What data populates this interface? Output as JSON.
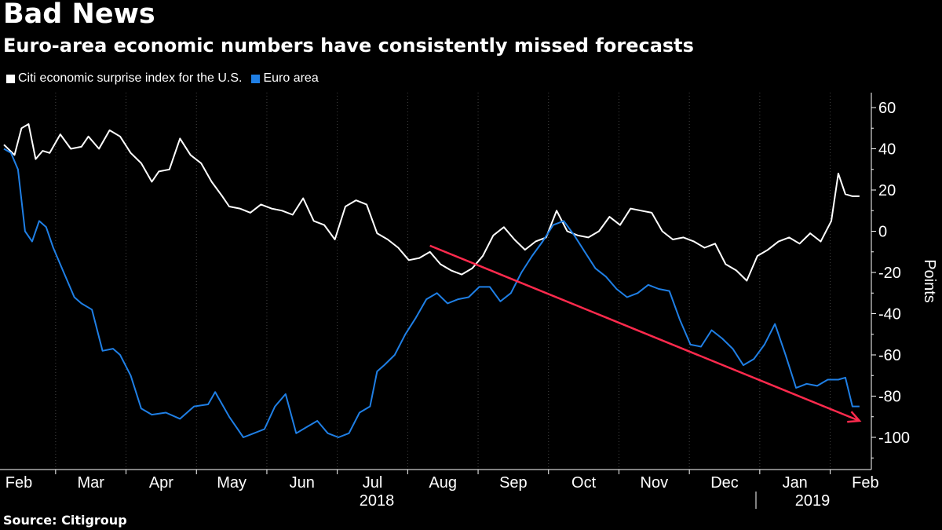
{
  "title": "Bad News",
  "subtitle": "Euro-area economic numbers have consistently missed forecasts",
  "source": "Source: Citigroup",
  "colors": {
    "background": "#000000",
    "us": "#ffffff",
    "euro": "#1f7fe5",
    "trend_arrow": "#ff2a4d",
    "grid": "#3a3a3a"
  },
  "chart_data": {
    "type": "line",
    "title": "Bad News",
    "subtitle": "Euro-area economic numbers have consistently missed forecasts",
    "ylabel": "Points",
    "ylim": [
      -115,
      65
    ],
    "yticks": [
      60,
      40,
      20,
      0,
      -20,
      -40,
      -60,
      -80,
      -100
    ],
    "yaxis_position": "right",
    "grid": "vertical dotted month separators",
    "legend_position": "top-left",
    "x_tick_labels": [
      "Feb",
      "Mar",
      "Apr",
      "May",
      "Jun",
      "Jul",
      "Aug",
      "Sep",
      "Oct",
      "Nov",
      "Dec",
      "Jan",
      "Feb"
    ],
    "year_labels": [
      "2018",
      "2019"
    ],
    "x_range": [
      0,
      12.15
    ],
    "series": [
      {
        "name": "Citi economic surprise index for the U.S.",
        "color": "#ffffff",
        "x": [
          0,
          0.15,
          0.25,
          0.35,
          0.45,
          0.55,
          0.65,
          0.8,
          0.95,
          1.1,
          1.2,
          1.35,
          1.5,
          1.65,
          1.8,
          1.95,
          2.1,
          2.2,
          2.35,
          2.5,
          2.65,
          2.8,
          2.95,
          3.1,
          3.2,
          3.35,
          3.5,
          3.65,
          3.8,
          3.95,
          4.1,
          4.25,
          4.4,
          4.55,
          4.7,
          4.85,
          5.0,
          5.15,
          5.3,
          5.45,
          5.6,
          5.75,
          5.9,
          6.05,
          6.2,
          6.35,
          6.5,
          6.65,
          6.8,
          6.95,
          7.1,
          7.25,
          7.4,
          7.55,
          7.7,
          7.85,
          8.0,
          8.15,
          8.3,
          8.45,
          8.6,
          8.75,
          8.9,
          9.05,
          9.2,
          9.35,
          9.5,
          9.65,
          9.8,
          9.95,
          10.1,
          10.25,
          10.4,
          10.55,
          10.7,
          10.85,
          11.0,
          11.15,
          11.3,
          11.45,
          11.6,
          11.75,
          11.85,
          11.95,
          12.05,
          12.15
        ],
        "y": [
          42,
          37,
          50,
          52,
          35,
          39,
          38,
          47,
          40,
          41,
          46,
          40,
          49,
          46,
          38,
          33,
          24,
          29,
          30,
          45,
          37,
          33,
          24,
          17,
          12,
          11,
          9,
          13,
          11,
          10,
          8,
          16,
          5,
          3,
          -4,
          12,
          15,
          13,
          -1,
          -4,
          -8,
          -14,
          -13,
          -10,
          -16,
          -19,
          -21,
          -18,
          -12,
          -2,
          2,
          -4,
          -9,
          -5,
          -3,
          10,
          0,
          -2,
          -3,
          0,
          7,
          3,
          11,
          10,
          9,
          0,
          -4,
          -3,
          -5,
          -8,
          -6,
          -16,
          -19,
          -24,
          -12,
          -9,
          -5,
          -3,
          -6,
          -1,
          -5,
          5,
          28,
          18,
          17,
          17
        ]
      },
      {
        "name": "Euro area",
        "color": "#1f7fe5",
        "x": [
          0,
          0.1,
          0.2,
          0.3,
          0.4,
          0.5,
          0.6,
          0.7,
          0.85,
          1.0,
          1.1,
          1.25,
          1.4,
          1.55,
          1.65,
          1.8,
          1.95,
          2.1,
          2.3,
          2.5,
          2.7,
          2.9,
          3.0,
          3.2,
          3.4,
          3.55,
          3.7,
          3.85,
          4.0,
          4.15,
          4.3,
          4.45,
          4.6,
          4.75,
          4.9,
          5.05,
          5.2,
          5.3,
          5.4,
          5.55,
          5.7,
          5.85,
          6.0,
          6.15,
          6.3,
          6.45,
          6.6,
          6.75,
          6.9,
          7.05,
          7.2,
          7.35,
          7.5,
          7.65,
          7.8,
          7.95,
          8.1,
          8.25,
          8.4,
          8.55,
          8.7,
          8.85,
          9.0,
          9.15,
          9.3,
          9.45,
          9.6,
          9.75,
          9.9,
          10.05,
          10.2,
          10.35,
          10.5,
          10.65,
          10.8,
          10.95,
          11.1,
          11.25,
          11.4,
          11.55,
          11.7,
          11.85,
          11.95,
          12.05,
          12.15
        ],
        "y": [
          40,
          38,
          30,
          0,
          -5,
          5,
          2,
          -8,
          -20,
          -32,
          -35,
          -38,
          -58,
          -57,
          -60,
          -70,
          -86,
          -89,
          -88,
          -91,
          -85,
          -84,
          -78,
          -90,
          -100,
          -98,
          -96,
          -85,
          -79,
          -98,
          -95,
          -92,
          -98,
          -100,
          -98,
          -88,
          -85,
          -68,
          -65,
          -60,
          -50,
          -42,
          -33,
          -30,
          -35,
          -33,
          -32,
          -27,
          -27,
          -34,
          -30,
          -20,
          -12,
          -5,
          3,
          5,
          -2,
          -10,
          -18,
          -22,
          -28,
          -32,
          -30,
          -26,
          -28,
          -29,
          -43,
          -55,
          -56,
          -48,
          -52,
          -57,
          -65,
          -62,
          -55,
          -45,
          -60,
          -76,
          -74,
          -75,
          -72,
          -72,
          -71,
          -85,
          -85
        ]
      }
    ],
    "annotations": [
      {
        "type": "arrow",
        "color": "#ff2a4d",
        "from": [
          6.05,
          -7
        ],
        "to": [
          12.15,
          -92
        ]
      }
    ]
  }
}
